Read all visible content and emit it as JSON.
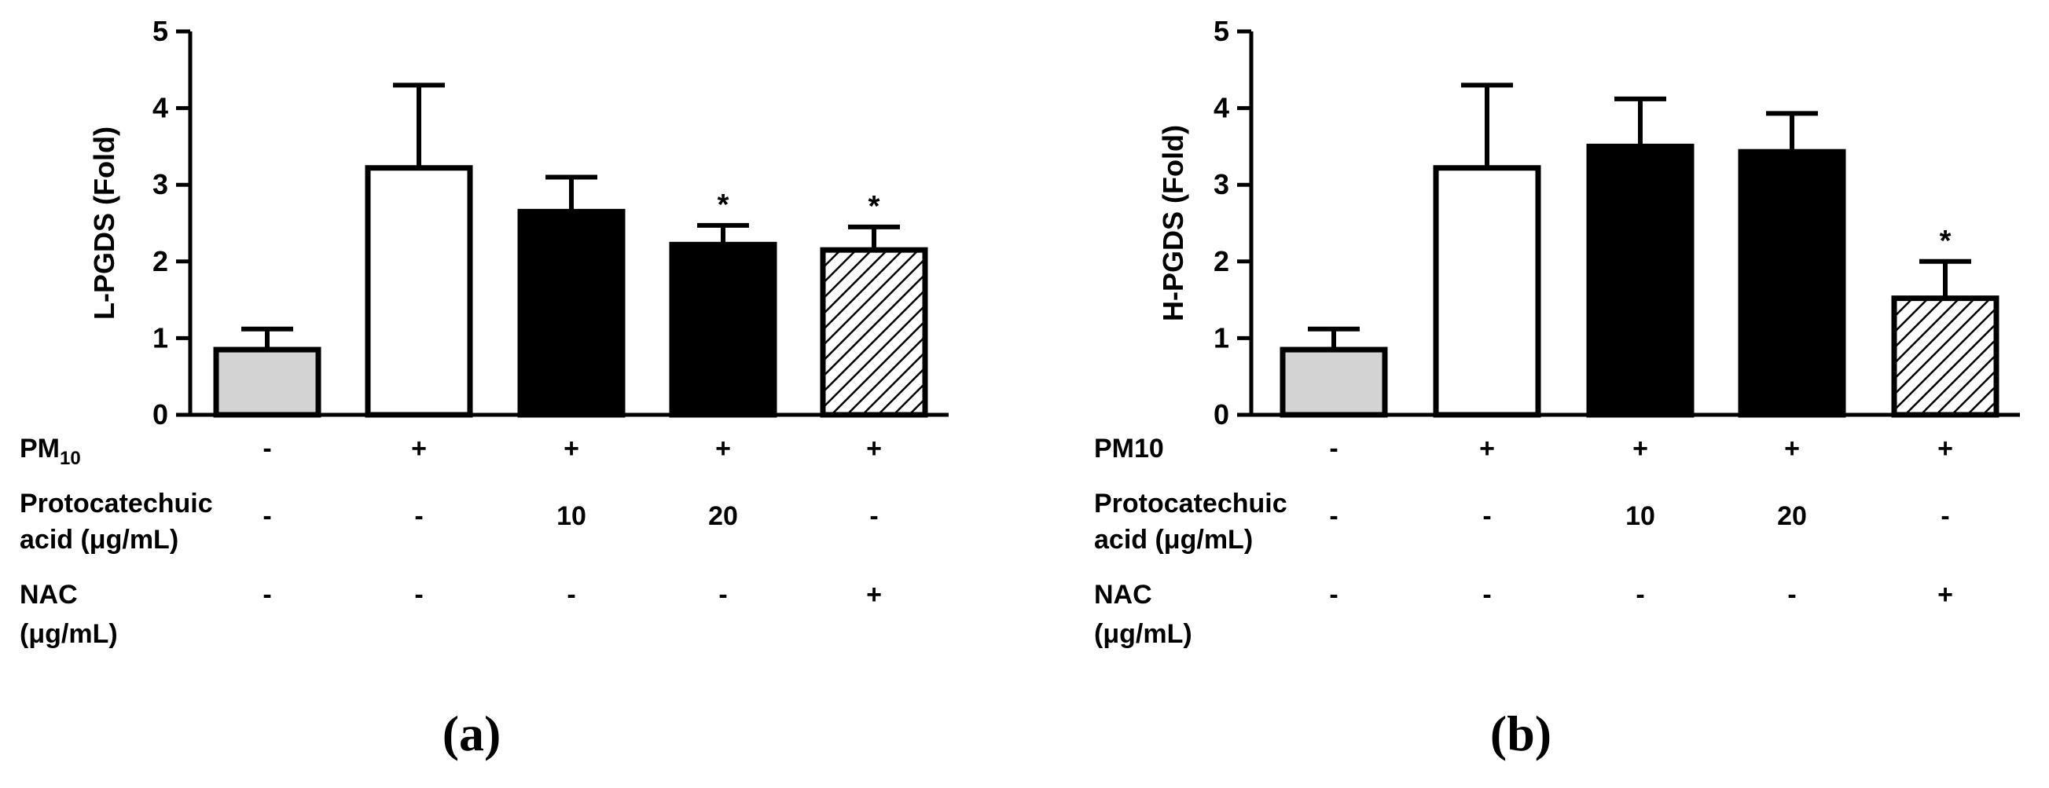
{
  "chart_data": [
    {
      "type": "bar",
      "panel_label": "(a)",
      "ylabel": "L-PGDS (Fold)",
      "ylim": [
        0,
        5
      ],
      "yticks": [
        "0",
        "1",
        "2",
        "3",
        "4",
        "5"
      ],
      "values": [
        0.85,
        3.22,
        2.65,
        2.22,
        2.15
      ],
      "errors": [
        0.27,
        1.08,
        0.45,
        0.25,
        0.3
      ],
      "fills": [
        "light-gray",
        "white",
        "black",
        "black",
        "hatched"
      ],
      "significance": [
        "",
        "",
        "",
        "*",
        "*"
      ],
      "treatment_rows": [
        {
          "label": "PM",
          "label_sub": "10",
          "values": [
            "-",
            "+",
            "+",
            "+",
            "+"
          ]
        },
        {
          "label": "Protocatechuic",
          "label_line2": "acid (μg/mL)",
          "values": [
            "-",
            "-",
            "10",
            "20",
            "-"
          ]
        },
        {
          "label": "NAC",
          "label_line2": "(μg/mL)",
          "values": [
            "-",
            "-",
            "-",
            "-",
            "+"
          ]
        }
      ]
    },
    {
      "type": "bar",
      "panel_label": "(b)",
      "ylabel": "H-PGDS (Fold)",
      "ylim": [
        0,
        5
      ],
      "yticks": [
        "0",
        "1",
        "2",
        "3",
        "4",
        "5"
      ],
      "values": [
        0.85,
        3.22,
        3.5,
        3.43,
        1.52
      ],
      "errors": [
        0.27,
        1.08,
        0.62,
        0.5,
        0.48
      ],
      "fills": [
        "light-gray",
        "white",
        "black",
        "black",
        "hatched"
      ],
      "significance": [
        "",
        "",
        "",
        "",
        "*"
      ],
      "treatment_rows": [
        {
          "label": "PM10",
          "label_sub": "",
          "values": [
            "-",
            "+",
            "+",
            "+",
            "+"
          ]
        },
        {
          "label": "Protocatechuic",
          "label_line2": "acid (μg/mL)",
          "values": [
            "-",
            "-",
            "10",
            "20",
            "-"
          ]
        },
        {
          "label": "NAC",
          "label_line2": "(μg/mL)",
          "values": [
            "-",
            "-",
            "-",
            "-",
            "+"
          ]
        }
      ]
    }
  ],
  "colors": {
    "light-gray": "#d3d3d3",
    "white": "#ffffff",
    "black": "#000000",
    "stroke": "#000000"
  }
}
